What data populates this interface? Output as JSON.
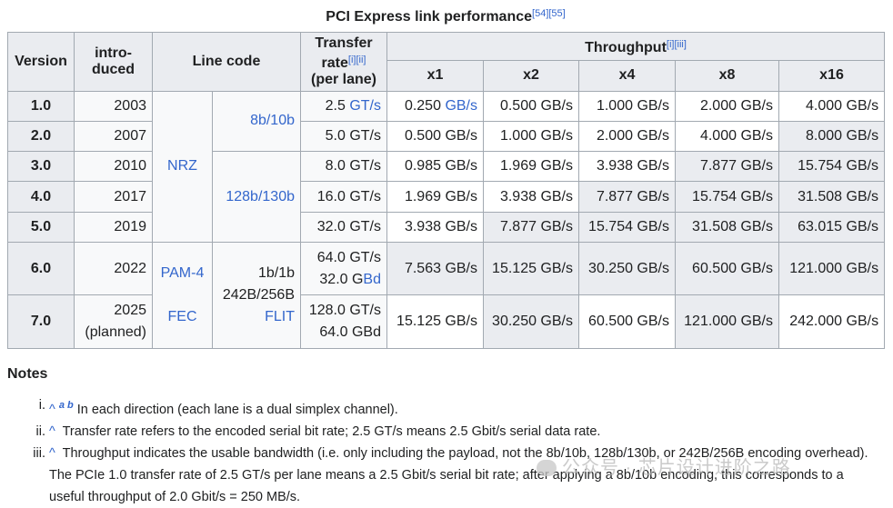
{
  "caption": {
    "title": "PCI Express link performance",
    "refs": "[54][55]"
  },
  "header": {
    "version": "Version",
    "introduced": "intro-duced",
    "line_code": "Line code",
    "transfer_rate": "Transfer rate",
    "transfer_refs": "[i][ii]",
    "per_lane": "(per lane)",
    "throughput": "Throughput",
    "throughput_refs": "[i][iii]",
    "lanes": [
      "x1",
      "x2",
      "x4",
      "x8",
      "x16"
    ]
  },
  "line_codes": {
    "nrz": "NRZ",
    "c8b10b": "8b/10b",
    "c128b130b": "128b/130b",
    "pam4": "PAM-4",
    "fec": "FEC",
    "c1b1b": "1b/1b",
    "c242b256b": "242B/256B",
    "flit": "FLIT"
  },
  "rows": [
    {
      "version": "1.0",
      "year": "2003",
      "rate_num": "2.5",
      "rate_unit": "GT/s",
      "tp": [
        "0.250",
        "0.500 GB/s",
        "1.000 GB/s",
        "2.000 GB/s",
        "4.000 GB/s"
      ],
      "tp_unit_first": "GB/s"
    },
    {
      "version": "2.0",
      "year": "2007",
      "rate": "5.0 GT/s",
      "tp": [
        "0.500 GB/s",
        "1.000 GB/s",
        "2.000 GB/s",
        "4.000 GB/s",
        "8.000 GB/s"
      ]
    },
    {
      "version": "3.0",
      "year": "2010",
      "rate": "8.0 GT/s",
      "tp": [
        "0.985 GB/s",
        "1.969 GB/s",
        "3.938 GB/s",
        "7.877 GB/s",
        "15.754 GB/s"
      ]
    },
    {
      "version": "4.0",
      "year": "2017",
      "rate": "16.0 GT/s",
      "tp": [
        "1.969 GB/s",
        "3.938 GB/s",
        "7.877 GB/s",
        "15.754 GB/s",
        "31.508 GB/s"
      ]
    },
    {
      "version": "5.0",
      "year": "2019",
      "rate": "32.0 GT/s",
      "tp": [
        "3.938 GB/s",
        "7.877 GB/s",
        "15.754 GB/s",
        "31.508 GB/s",
        "63.015 GB/s"
      ]
    },
    {
      "version": "6.0",
      "year": "2022",
      "rate_a": "64.0 GT/s",
      "rate_b_num": "32.0 G",
      "rate_b_unit": "Bd",
      "tp": [
        "7.563 GB/s",
        "15.125 GB/s",
        "30.250 GB/s",
        "60.500 GB/s",
        "121.000 GB/s"
      ]
    },
    {
      "version": "7.0",
      "year": "2025",
      "year_note": "(planned)",
      "rate_a": "128.0 GT/s",
      "rate_b": "64.0 GBd",
      "tp": [
        "15.125 GB/s",
        "30.250 GB/s",
        "60.500 GB/s",
        "121.000 GB/s",
        "242.000 GB/s"
      ]
    }
  ],
  "notes": {
    "title": "Notes",
    "items": [
      {
        "num": "i.",
        "caret": "^",
        "refs": "a b",
        "text": "In each direction (each lane is a dual simplex channel)."
      },
      {
        "num": "ii.",
        "caret": "^",
        "text": "Transfer rate refers to the encoded serial bit rate; 2.5 GT/s means 2.5 Gbit/s serial data rate."
      },
      {
        "num": "iii.",
        "caret": "^",
        "text": "Throughput indicates the usable bandwidth (i.e. only including the payload, not the 8b/10b, 128b/130b, or 242B/256B encoding overhead). The PCIe 1.0 transfer rate of 2.5 GT/s per lane means a 2.5 Gbit/s serial bit rate; after applying a 8b/10b encoding, this corresponds to a useful throughput of 2.0 Gbit/s = 250 MB/s."
      }
    ]
  },
  "watermark": "公众号 · 芯片设计进阶之路"
}
